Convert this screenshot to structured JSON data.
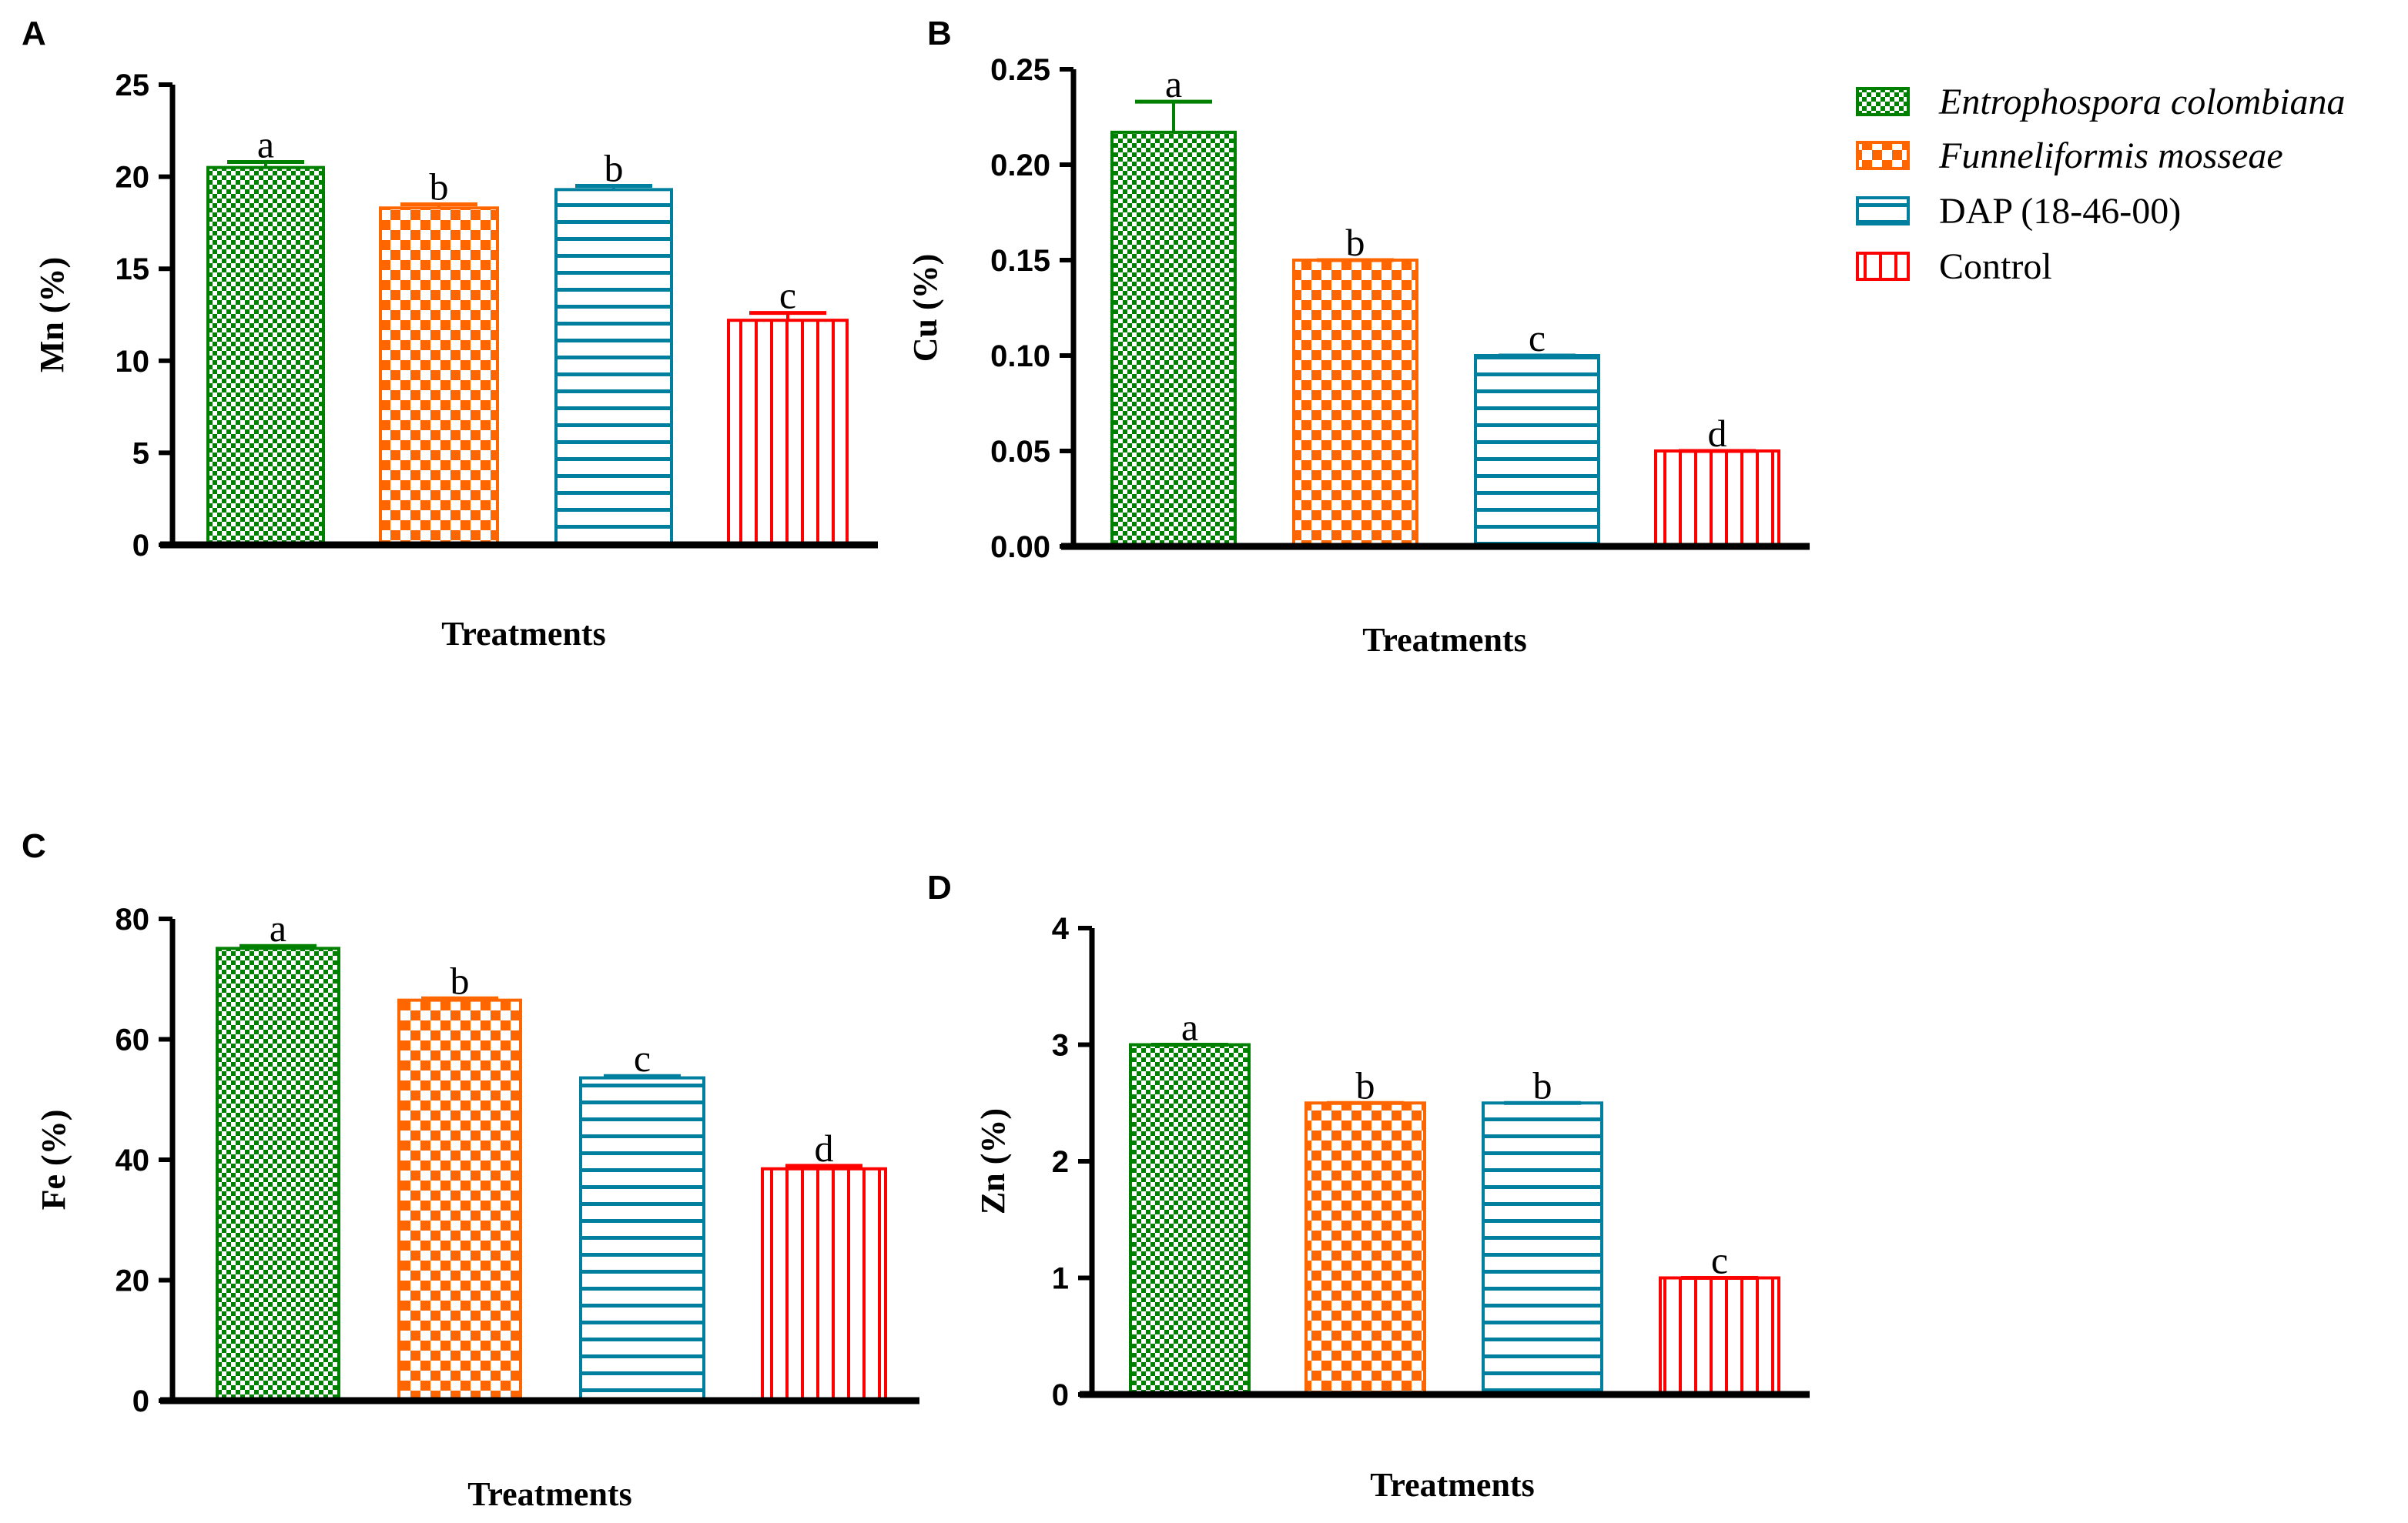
{
  "legend": [
    {
      "label": "Entrophospora colombiana",
      "italic": true,
      "color": "#008000",
      "pattern": "fine-checker"
    },
    {
      "label": "Funneliformis mosseae",
      "italic": true,
      "color": "#ff6600",
      "pattern": "coarse-checker"
    },
    {
      "label": "DAP (18-46-00)",
      "italic": false,
      "color": "#007f9f",
      "pattern": "horizontal-lines"
    },
    {
      "label": "Control",
      "italic": false,
      "color": "#ff0000",
      "pattern": "vertical-lines"
    }
  ],
  "chart_data": [
    {
      "type": "bar",
      "panel": "A",
      "xlabel": "Treatments",
      "ylabel": "Mn (%)",
      "ylim": [
        0,
        25
      ],
      "yticks": [
        "0",
        "5",
        "10",
        "15",
        "20",
        "25"
      ],
      "ytick_values": [
        0,
        5,
        10,
        15,
        20,
        25
      ],
      "categories": [
        "Entrophospora colombiana",
        "Funneliformis mosseae",
        "DAP (18-46-00)",
        "Control"
      ],
      "values": [
        20.5,
        18.3,
        19.3,
        12.2
      ],
      "errors": [
        0.3,
        0.2,
        0.2,
        0.4
      ],
      "letters": [
        "a",
        "b",
        "b",
        "c"
      ]
    },
    {
      "type": "bar",
      "panel": "B",
      "xlabel": "Treatments",
      "ylabel": "Cu (%)",
      "ylim": [
        0,
        0.25
      ],
      "yticks": [
        "0.00",
        "0.05",
        "0.10",
        "0.15",
        "0.20",
        "0.25"
      ],
      "ytick_values": [
        0,
        0.05,
        0.1,
        0.15,
        0.2,
        0.25
      ],
      "categories": [
        "Entrophospora colombiana",
        "Funneliformis mosseae",
        "DAP (18-46-00)",
        "Control"
      ],
      "values": [
        0.217,
        0.15,
        0.1,
        0.05
      ],
      "errors": [
        0.016,
        0,
        0,
        0
      ],
      "letters": [
        "a",
        "b",
        "c",
        "d"
      ]
    },
    {
      "type": "bar",
      "panel": "C",
      "xlabel": "Treatments",
      "ylabel": "Fe (%)",
      "ylim": [
        0,
        80
      ],
      "yticks": [
        "0",
        "20",
        "40",
        "60",
        "80"
      ],
      "ytick_values": [
        0,
        20,
        40,
        60,
        80
      ],
      "categories": [
        "Entrophospora colombiana",
        "Funneliformis mosseae",
        "DAP (18-46-00)",
        "Control"
      ],
      "values": [
        75.1,
        66.5,
        53.6,
        38.5
      ],
      "errors": [
        0.4,
        0.3,
        0.3,
        0.5
      ],
      "letters": [
        "a",
        "b",
        "c",
        "d"
      ]
    },
    {
      "type": "bar",
      "panel": "D",
      "xlabel": "Treatments",
      "ylabel": "Zn (%)",
      "ylim": [
        0,
        4
      ],
      "yticks": [
        "0",
        "1",
        "2",
        "3",
        "4"
      ],
      "ytick_values": [
        0,
        1,
        2,
        3,
        4
      ],
      "categories": [
        "Entrophospora colombiana",
        "Funneliformis mosseae",
        "DAP (18-46-00)",
        "Control"
      ],
      "values": [
        3.0,
        2.5,
        2.5,
        1.0
      ],
      "errors": [
        0,
        0,
        0,
        0
      ],
      "letters": [
        "a",
        "b",
        "b",
        "c"
      ]
    }
  ]
}
